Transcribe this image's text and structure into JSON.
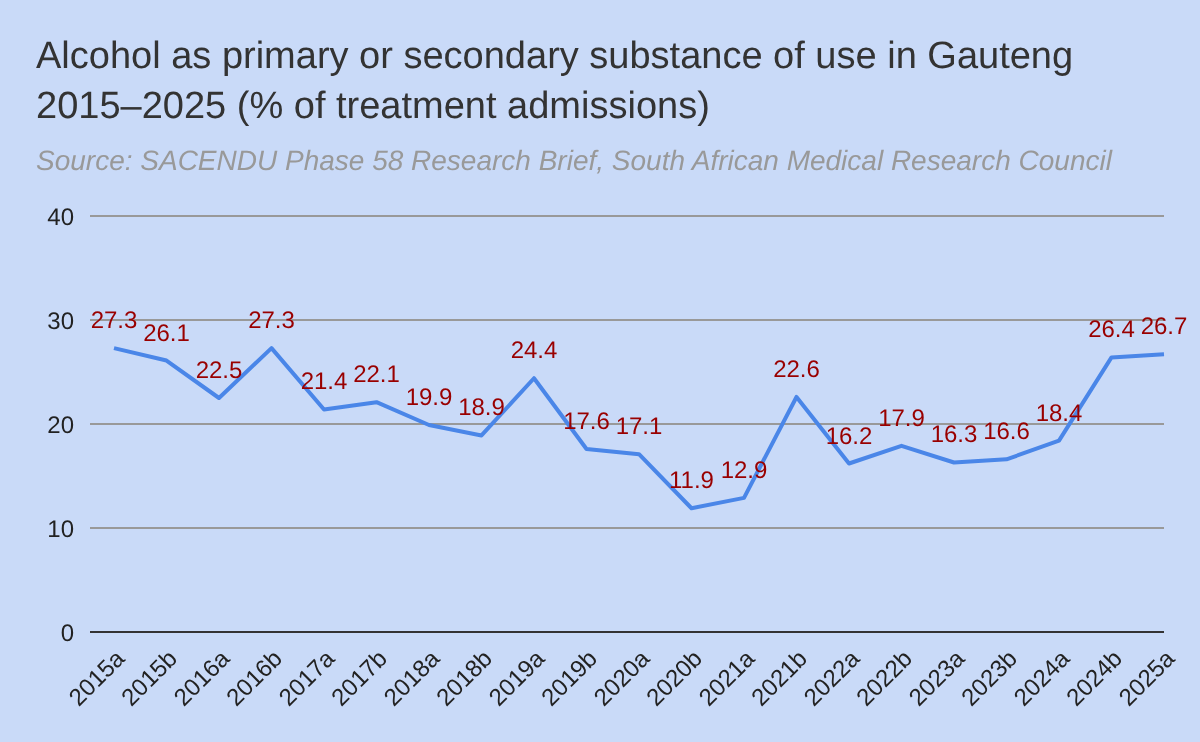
{
  "chart_data": {
    "type": "line",
    "title": "Alcohol as primary or secondary substance of use in Gauteng 2015–2025 (% of treatment admissions)",
    "subtitle": "Source: SACENDU Phase 58 Research Brief, South African Medical Research Council",
    "categories": [
      "2015a",
      "2015b",
      "2016a",
      "2016b",
      "2017a",
      "2017b",
      "2018a",
      "2018b",
      "2019a",
      "2019b",
      "2020a",
      "2020b",
      "2021a",
      "2021b",
      "2022a",
      "2022b",
      "2023a",
      "2023b",
      "2024a",
      "2024b",
      "2025a"
    ],
    "series": [
      {
        "color": "#4a86e8",
        "values": [
          27.3,
          26.1,
          22.5,
          27.3,
          21.4,
          22.1,
          19.9,
          18.9,
          24.4,
          17.6,
          17.1,
          11.9,
          12.9,
          22.6,
          16.2,
          17.9,
          16.3,
          16.6,
          18.4,
          26.4,
          26.7
        ]
      }
    ],
    "ylim": [
      0,
      40
    ],
    "yticks": [
      0,
      10,
      20,
      30,
      40
    ],
    "grid": "y",
    "data_labels": true
  }
}
